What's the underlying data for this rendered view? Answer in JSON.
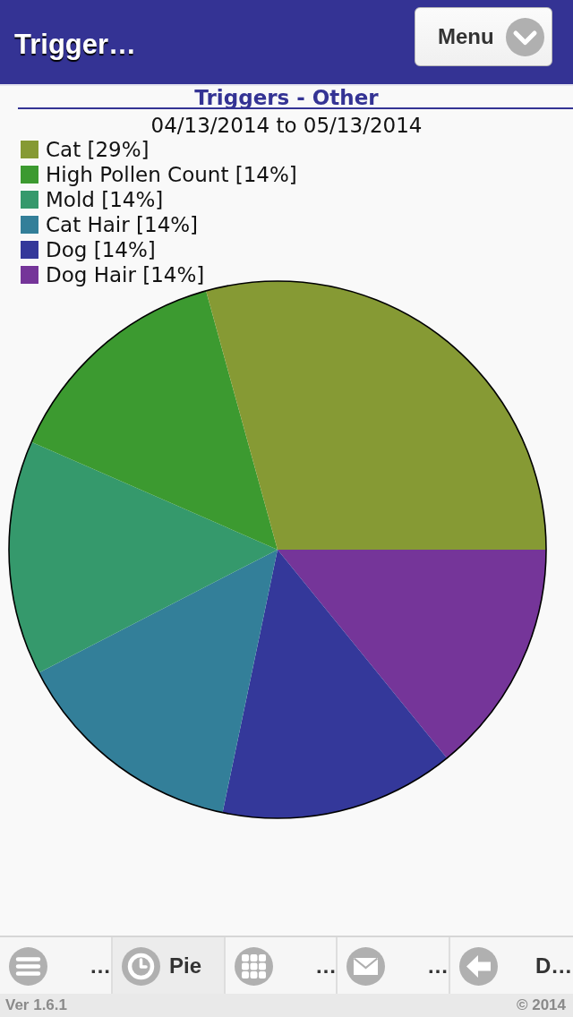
{
  "chart_data": {
    "type": "pie",
    "title": "Triggers - Other",
    "subtitle": "04/13/2014 to 05/13/2014",
    "categories": [
      "Cat [29%]",
      "High Pollen Count [14%]",
      "Mold [14%]",
      "Cat Hair [14%]",
      "Dog [14%]",
      "Dog Hair [14%]"
    ],
    "values": [
      29,
      14,
      14,
      14,
      14,
      14
    ],
    "colors": [
      "#869a34",
      "#3c9a30",
      "#35996c",
      "#337f99",
      "#34389a",
      "#753599"
    ],
    "legend": "top left",
    "annotations": [
      "Trigger…",
      "Menu",
      "…",
      "Pie",
      "…",
      "…",
      "D…",
      "Ver 1.6.1",
      "© 2014"
    ]
  }
}
